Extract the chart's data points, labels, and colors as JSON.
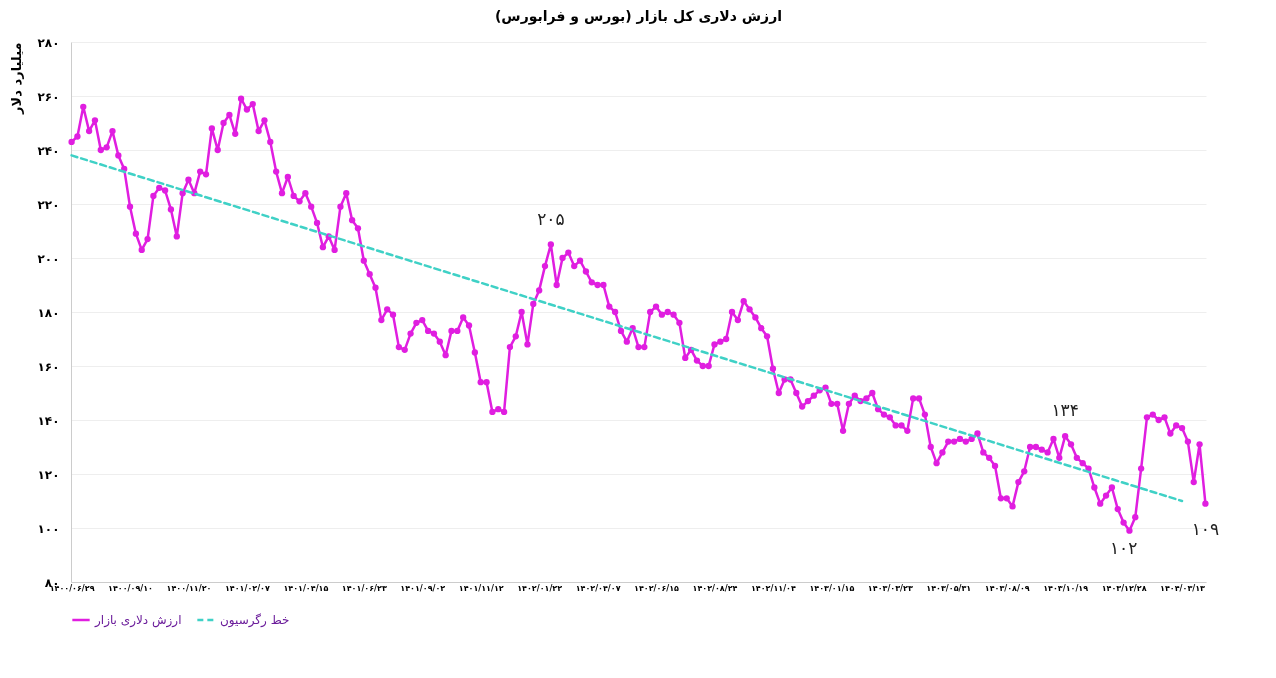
{
  "chart_data": {
    "type": "line",
    "title": "ارزش دلاری کل بازار (بورس و فرابورس)",
    "ylabel": "میلیارد دلار",
    "categories": [
      "۱۴۰۰/۰۶/۲۹",
      null,
      null,
      null,
      null,
      null,
      null,
      null,
      null,
      null,
      "۱۴۰۰/۰۹/۱۰",
      null,
      null,
      null,
      null,
      null,
      null,
      null,
      null,
      null,
      "۱۴۰۰/۱۱/۲۰",
      null,
      null,
      null,
      null,
      null,
      null,
      null,
      null,
      null,
      "۱۴۰۱/۰۲/۰۷",
      null,
      null,
      null,
      null,
      null,
      null,
      null,
      null,
      null,
      "۱۴۰۱/۰۴/۱۵",
      null,
      null,
      null,
      null,
      null,
      null,
      null,
      null,
      null,
      "۱۴۰۱/۰۶/۲۳",
      null,
      null,
      null,
      null,
      null,
      null,
      null,
      null,
      null,
      "۱۴۰۱/۰۹/۰۲",
      null,
      null,
      null,
      null,
      null,
      null,
      null,
      null,
      null,
      "۱۴۰۱/۱۱/۱۲",
      null,
      null,
      null,
      null,
      null,
      null,
      null,
      null,
      null,
      "۱۴۰۲/۰۱/۲۲",
      null,
      null,
      null,
      null,
      null,
      null,
      null,
      null,
      null,
      "۱۴۰۲/۰۴/۰۷",
      null,
      null,
      null,
      null,
      null,
      null,
      null,
      null,
      null,
      "۱۴۰۲/۰۶/۱۵",
      null,
      null,
      null,
      null,
      null,
      null,
      null,
      null,
      null,
      "۱۴۰۲/۰۸/۲۴",
      null,
      null,
      null,
      null,
      null,
      null,
      null,
      null,
      null,
      "۱۴۰۲/۱۱/۰۴",
      null,
      null,
      null,
      null,
      null,
      null,
      null,
      null,
      null,
      "۱۴۰۳/۰۱/۱۵",
      null,
      null,
      null,
      null,
      null,
      null,
      null,
      null,
      null,
      "۱۴۰۳/۰۳/۲۳",
      null,
      null,
      null,
      null,
      null,
      null,
      null,
      null,
      null,
      "۱۴۰۳/۰۵/۳۱",
      null,
      null,
      null,
      null,
      null,
      null,
      null,
      null,
      null,
      "۱۴۰۳/۰۸/۰۹",
      null,
      null,
      null,
      null,
      null,
      null,
      null,
      null,
      null,
      "۱۴۰۳/۱۰/۱۹",
      null,
      null,
      null,
      null,
      null,
      null,
      null,
      null,
      null,
      "۱۴۰۳/۱۲/۲۸",
      null,
      null,
      null,
      null,
      null,
      null,
      null,
      null,
      null,
      "۱۴۰۴/۰۳/۱۳",
      null,
      null,
      null,
      null
    ],
    "series": [
      {
        "name": "ارزش دلاری بازار",
        "color": "#e01ee0",
        "values": [
          243,
          245,
          256,
          247,
          251,
          240,
          241,
          247,
          238,
          233,
          219,
          209,
          203,
          207,
          223,
          226,
          225,
          218,
          208,
          224,
          229,
          224,
          232,
          231,
          248,
          240,
          250,
          253,
          246,
          259,
          255,
          257,
          247,
          251,
          243,
          232,
          224,
          230,
          223,
          221,
          224,
          219,
          213,
          204,
          208,
          203,
          219,
          224,
          214,
          211,
          199,
          194,
          189,
          177,
          181,
          179,
          167,
          166,
          172,
          176,
          177,
          173,
          172,
          169,
          164,
          173,
          173,
          178,
          175,
          165,
          154,
          154,
          143,
          144,
          143,
          167,
          171,
          180,
          168,
          183,
          188,
          197,
          205,
          190,
          200,
          202,
          197,
          199,
          195,
          191,
          190,
          190,
          182,
          180,
          173,
          169,
          174,
          167,
          167,
          180,
          182,
          179,
          180,
          179,
          176,
          163,
          166,
          162,
          160,
          160,
          168,
          169,
          170,
          180,
          177,
          184,
          181,
          178,
          174,
          171,
          159,
          150,
          155,
          155,
          150,
          145,
          147,
          149,
          151,
          152,
          146,
          146,
          136,
          146,
          149,
          147,
          148,
          150,
          144,
          142,
          141,
          138,
          138,
          136,
          148,
          148,
          142,
          130,
          124,
          128,
          132,
          132,
          133,
          132,
          133,
          135,
          128,
          126,
          123,
          111,
          111,
          108,
          117,
          121,
          130,
          130,
          129,
          128,
          133,
          126,
          134,
          131,
          126,
          124,
          122,
          115,
          109,
          112,
          115,
          107,
          102,
          99,
          104,
          122,
          141,
          142,
          140,
          141,
          135,
          138,
          137,
          132,
          117,
          131,
          109
        ],
        "value_labels": [
          null,
          null,
          null,
          null,
          null,
          null,
          null,
          null,
          null,
          null,
          null,
          null,
          null,
          null,
          null,
          null,
          null,
          null,
          null,
          null,
          null,
          null,
          null,
          null,
          null,
          null,
          null,
          null,
          null,
          null,
          null,
          null,
          null,
          null,
          null,
          null,
          null,
          null,
          null,
          null,
          null,
          null,
          null,
          null,
          null,
          null,
          null,
          null,
          null,
          null,
          null,
          null,
          null,
          null,
          null,
          null,
          null,
          null,
          null,
          null,
          null,
          null,
          null,
          null,
          null,
          null,
          null,
          null,
          null,
          null,
          null,
          null,
          null,
          null,
          null,
          null,
          null,
          null,
          null,
          null,
          null,
          null,
          "۲۰۵",
          null,
          null,
          null,
          null,
          null,
          null,
          null,
          null,
          null,
          null,
          null,
          null,
          null,
          null,
          null,
          null,
          null,
          null,
          null,
          null,
          null,
          null,
          null,
          null,
          null,
          null,
          null,
          null,
          null,
          null,
          null,
          null,
          null,
          null,
          null,
          null,
          null,
          null,
          null,
          null,
          null,
          null,
          null,
          null,
          null,
          null,
          null,
          null,
          null,
          null,
          null,
          null,
          null,
          null,
          null,
          null,
          null,
          null,
          null,
          null,
          null,
          null,
          null,
          null,
          null,
          null,
          null,
          null,
          null,
          null,
          null,
          null,
          null,
          null,
          null,
          null,
          null,
          null,
          null,
          null,
          null,
          null,
          null,
          null,
          null,
          null,
          null,
          "۱۳۴",
          null,
          null,
          null,
          null,
          null,
          null,
          null,
          null,
          null,
          "۱۰۲",
          null,
          null,
          null,
          null,
          null,
          null,
          null,
          null,
          null,
          null,
          null,
          null,
          null,
          "۱۰۹"
        ]
      },
      {
        "name": "خط رگرسیون",
        "color": "#3fd1c6",
        "type": "line",
        "line_style": "dashed",
        "marker": "none",
        "x": [
          "۱۴۰۰/۰۶/۲۹",
          "۱۴۰۴/۰۳/۱۳"
        ],
        "values": [
          238,
          110
        ]
      }
    ],
    "ylim": [
      80,
      280
    ],
    "yticks": [
      {
        "value": 80,
        "label": "۸۰"
      },
      {
        "value": 100,
        "label": "۱۰۰"
      },
      {
        "value": 120,
        "label": "۱۲۰"
      },
      {
        "value": 140,
        "label": "۱۴۰"
      },
      {
        "value": 160,
        "label": "۱۶۰"
      },
      {
        "value": 180,
        "label": "۱۸۰"
      },
      {
        "value": 200,
        "label": "۲۰۰"
      },
      {
        "value": 220,
        "label": "۲۲۰"
      },
      {
        "value": 240,
        "label": "۲۴۰"
      },
      {
        "value": 260,
        "label": "۲۶۰"
      },
      {
        "value": 280,
        "label": "۲۸۰"
      }
    ],
    "grid": "y",
    "legend": "bottom",
    "marker": "circle",
    "line_style": "solid"
  }
}
